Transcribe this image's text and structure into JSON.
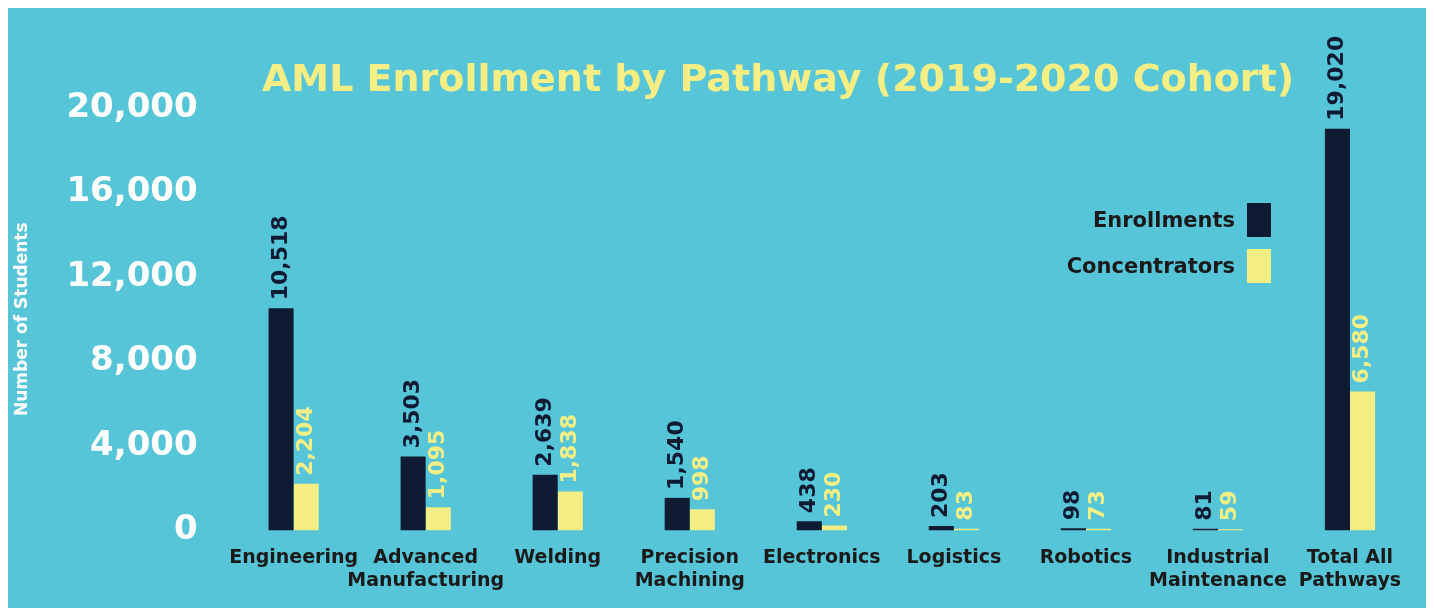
{
  "chart_data": {
    "type": "bar",
    "title": "AML Enrollment by Pathway (2019-2020 Cohort)",
    "ylabel": "Number of Students",
    "categories": [
      "Engineering",
      "Advanced Manufacturing",
      "Welding",
      "Precision Machining",
      "Electronics",
      "Logistics",
      "Robotics",
      "Industrial Maintenance",
      "Total All Pathways"
    ],
    "series": [
      {
        "name": "Enrollments",
        "color": "#0f1a33",
        "values": [
          10518,
          3503,
          2639,
          1540,
          438,
          203,
          98,
          81,
          19020
        ],
        "value_labels": [
          "10,518",
          "3,503",
          "2,639",
          "1,540",
          "438",
          "203",
          "98",
          "81",
          "19,020"
        ]
      },
      {
        "name": "Concentrators",
        "color": "#f5ee84",
        "values": [
          2204,
          1095,
          1838,
          998,
          230,
          83,
          73,
          59,
          6580
        ],
        "value_labels": [
          "2,204",
          "1,095",
          "1,838",
          "998",
          "230",
          "83",
          "73",
          "59",
          "6,580"
        ]
      }
    ],
    "ylim": [
      0,
      20000
    ],
    "yticks": [
      0,
      {
        "value": 4000,
        "label": "4,000"
      },
      {
        "value": 8000,
        "label": "8,000"
      },
      {
        "value": 12000,
        "label": "12,000"
      },
      {
        "value": 16000,
        "label": "16,000"
      },
      {
        "value": 20000,
        "label": "20,000"
      }
    ],
    "grid": false,
    "legend": "top right"
  }
}
